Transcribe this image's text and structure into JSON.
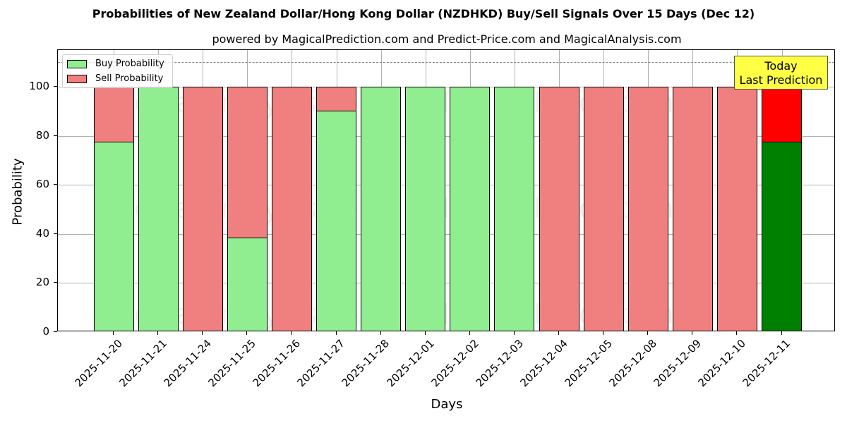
{
  "chart_data": {
    "type": "bar",
    "stacked": true,
    "title": "Probabilities of New Zealand Dollar/Hong Kong Dollar (NZDHKD) Buy/Sell Signals Over 15 Days (Dec 12)",
    "subtitle": "powered by MagicalPrediction.com and Predict-Price.com and MagicalAnalysis.com",
    "xlabel": "Days",
    "ylabel": "Probability",
    "ylim": [
      0,
      115
    ],
    "yticks": [
      0,
      20,
      40,
      60,
      80,
      100
    ],
    "grid": true,
    "legend_position": "upper left",
    "reference_line": {
      "y": 110,
      "style": "dashed",
      "color": "#808080"
    },
    "categories": [
      "2025-11-20",
      "2025-11-21",
      "2025-11-24",
      "2025-11-25",
      "2025-11-26",
      "2025-11-27",
      "2025-11-28",
      "2025-12-01",
      "2025-12-02",
      "2025-12-03",
      "2025-12-04",
      "2025-12-05",
      "2025-12-08",
      "2025-12-09",
      "2025-12-10",
      "2025-12-11"
    ],
    "series": [
      {
        "name": "Buy Probability",
        "color": "#90ee90",
        "values": [
          77.7,
          100,
          0,
          38.4,
          0,
          90.2,
          100,
          100,
          100,
          100,
          0,
          0,
          0,
          0,
          0,
          77.7
        ]
      },
      {
        "name": "Sell Probability",
        "color": "#f08080",
        "values": [
          22.3,
          0,
          100,
          61.6,
          100,
          9.8,
          0,
          0,
          0,
          0,
          100,
          100,
          100,
          100,
          100,
          22.3
        ]
      }
    ],
    "highlight": {
      "index": 15,
      "buy_color": "#008000",
      "sell_color": "#ff0000",
      "annotation": "Today\nLast Prediction"
    }
  },
  "legend": {
    "buy_label": "Buy Probability",
    "sell_label": "Sell Probability"
  },
  "annotation": {
    "line1": "Today",
    "line2": "Last Prediction"
  },
  "watermarks": [
    "MagicalAnalysis.com",
    "MagicalPrediction.com"
  ]
}
